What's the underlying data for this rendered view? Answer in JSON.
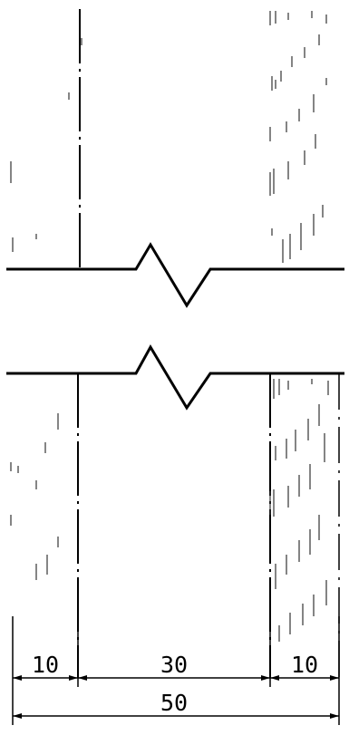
{
  "drawing": {
    "line_color": "#000000",
    "hatch_color": "#333333",
    "background": "#ffffff"
  },
  "dimensions": {
    "left_segment": "10",
    "middle_segment": "30",
    "right_segment": "10",
    "overall": "50"
  }
}
